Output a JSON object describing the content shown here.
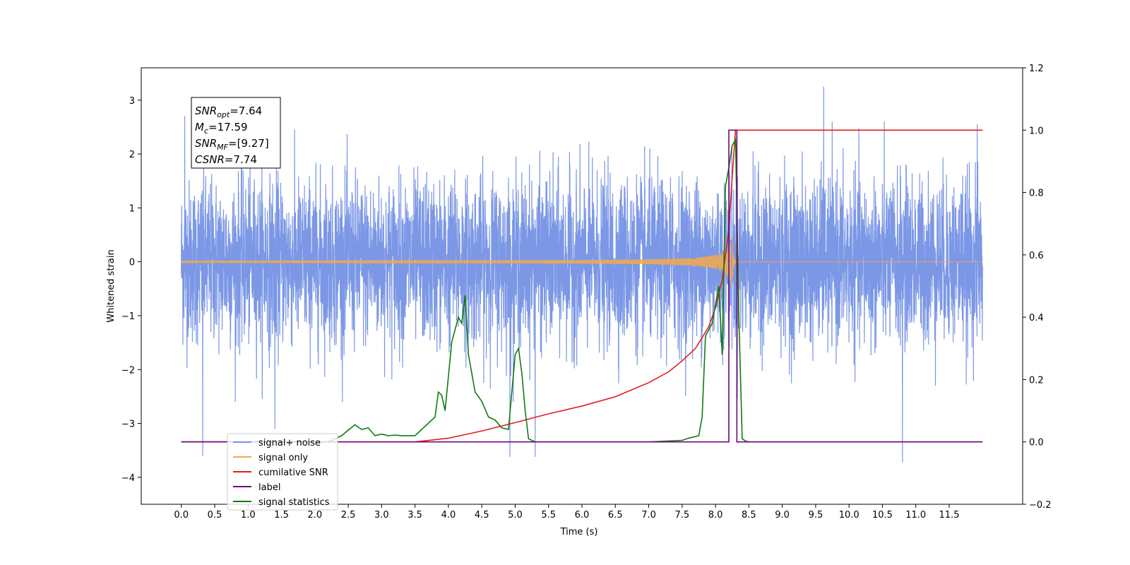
{
  "chart_data": {
    "type": "line",
    "title": "",
    "xlabel": "Time (s)",
    "ylabel": "Whitened strain",
    "y2label": "",
    "xlim": [
      -0.6,
      12.6
    ],
    "ylim": [
      -4.5,
      3.6
    ],
    "y2lim": [
      -0.2,
      1.2
    ],
    "x_ticks": [
      "0.0",
      "0.5",
      "1.0",
      "1.5",
      "2.0",
      "2.5",
      "3.0",
      "3.5",
      "4.0",
      "4.5",
      "5.0",
      "5.5",
      "6.0",
      "6.5",
      "7.0",
      "7.5",
      "8.0",
      "8.5",
      "9.0",
      "9.5",
      "10.0",
      "10.5",
      "11.0",
      "11.5"
    ],
    "y_ticks": [
      "3",
      "2",
      "1",
      "0",
      "−1",
      "−2",
      "−3",
      "−4"
    ],
    "y2_ticks": [
      "1.2",
      "1.0",
      "0.8",
      "0.6",
      "0.4",
      "0.2",
      "0.0",
      "−0.2"
    ],
    "grid": false,
    "legend_position": "lower-left",
    "annotation": {
      "lines": [
        {
          "main": "SNR",
          "sub": "opt",
          "value": "=7.64"
        },
        {
          "main": "M",
          "sub": "c",
          "value": "=17.59"
        },
        {
          "main": "SNR",
          "sub": "MF",
          "value": "=[9.27]"
        },
        {
          "main": "CSNR",
          "sub": "",
          "value": "=7.74"
        }
      ]
    },
    "series": [
      {
        "name": "signal+ noise",
        "color": "#7895e6",
        "axis": "left",
        "kind": "noise",
        "x_range": [
          0.0,
          12.0
        ],
        "envelope_std": 0.75,
        "spike_points": [
          [
            0.32,
            -3.6
          ],
          [
            0.05,
            2.7
          ],
          [
            1.4,
            -3.1
          ],
          [
            4.92,
            -3.62
          ],
          [
            5.3,
            -3.62
          ],
          [
            9.62,
            3.25
          ],
          [
            10.8,
            -3.72
          ],
          [
            11.92,
            2.55
          ]
        ]
      },
      {
        "name": "signal only",
        "color": "#f5a94c",
        "axis": "left",
        "kind": "chirp",
        "merger_time": 8.25,
        "peak_amplitude": 0.5
      },
      {
        "name": "cumilative SNR",
        "color": "#e8191c",
        "axis": "right",
        "x": [
          0.0,
          3.0,
          3.5,
          4.0,
          4.5,
          5.0,
          5.5,
          6.0,
          6.5,
          7.0,
          7.3,
          7.5,
          7.7,
          7.9,
          8.0,
          8.1,
          8.2,
          8.25,
          8.3,
          12.0
        ],
        "values": [
          0.0,
          0.0,
          0.0,
          0.012,
          0.035,
          0.062,
          0.09,
          0.115,
          0.145,
          0.19,
          0.225,
          0.26,
          0.3,
          0.37,
          0.43,
          0.52,
          0.68,
          0.85,
          1.0,
          1.0
        ]
      },
      {
        "name": "label",
        "color": "#6f0a7a",
        "axis": "right",
        "x": [
          0.0,
          8.2,
          8.2,
          8.32,
          8.32,
          12.0
        ],
        "values": [
          0.0,
          0.0,
          1.0,
          1.0,
          0.0,
          0.0
        ]
      },
      {
        "name": "signal statistics",
        "color": "#0f7a0f",
        "axis": "right",
        "x": [
          0.0,
          2.2,
          2.4,
          2.6,
          2.7,
          2.8,
          2.9,
          3.0,
          3.1,
          3.2,
          3.3,
          3.5,
          3.6,
          3.7,
          3.8,
          3.85,
          3.9,
          3.95,
          4.05,
          4.15,
          4.2,
          4.25,
          4.3,
          4.4,
          4.5,
          4.6,
          4.7,
          4.8,
          4.9,
          5.0,
          5.05,
          5.1,
          5.15,
          5.2,
          5.3,
          5.5,
          6.0,
          6.5,
          7.0,
          7.5,
          7.6,
          7.75,
          7.8,
          7.85,
          7.9,
          7.95,
          8.0,
          8.05,
          8.1,
          8.15,
          8.2,
          8.25,
          8.3,
          8.35,
          8.4,
          8.45,
          8.5,
          9.0,
          12.0
        ],
        "values": [
          0.0,
          0.0,
          0.02,
          0.055,
          0.04,
          0.045,
          0.02,
          0.025,
          0.02,
          0.022,
          0.02,
          0.02,
          0.04,
          0.06,
          0.08,
          0.16,
          0.15,
          0.1,
          0.32,
          0.4,
          0.38,
          0.47,
          0.28,
          0.16,
          0.13,
          0.08,
          0.07,
          0.045,
          0.04,
          0.28,
          0.3,
          0.22,
          0.1,
          0.01,
          0.0,
          0.0,
          0.0,
          0.0,
          0.0,
          0.005,
          0.012,
          0.02,
          0.08,
          0.34,
          0.36,
          0.38,
          0.44,
          0.5,
          0.28,
          0.82,
          0.88,
          0.95,
          0.97,
          0.4,
          0.01,
          0.003,
          0.0,
          0.0,
          0.0
        ]
      }
    ]
  }
}
